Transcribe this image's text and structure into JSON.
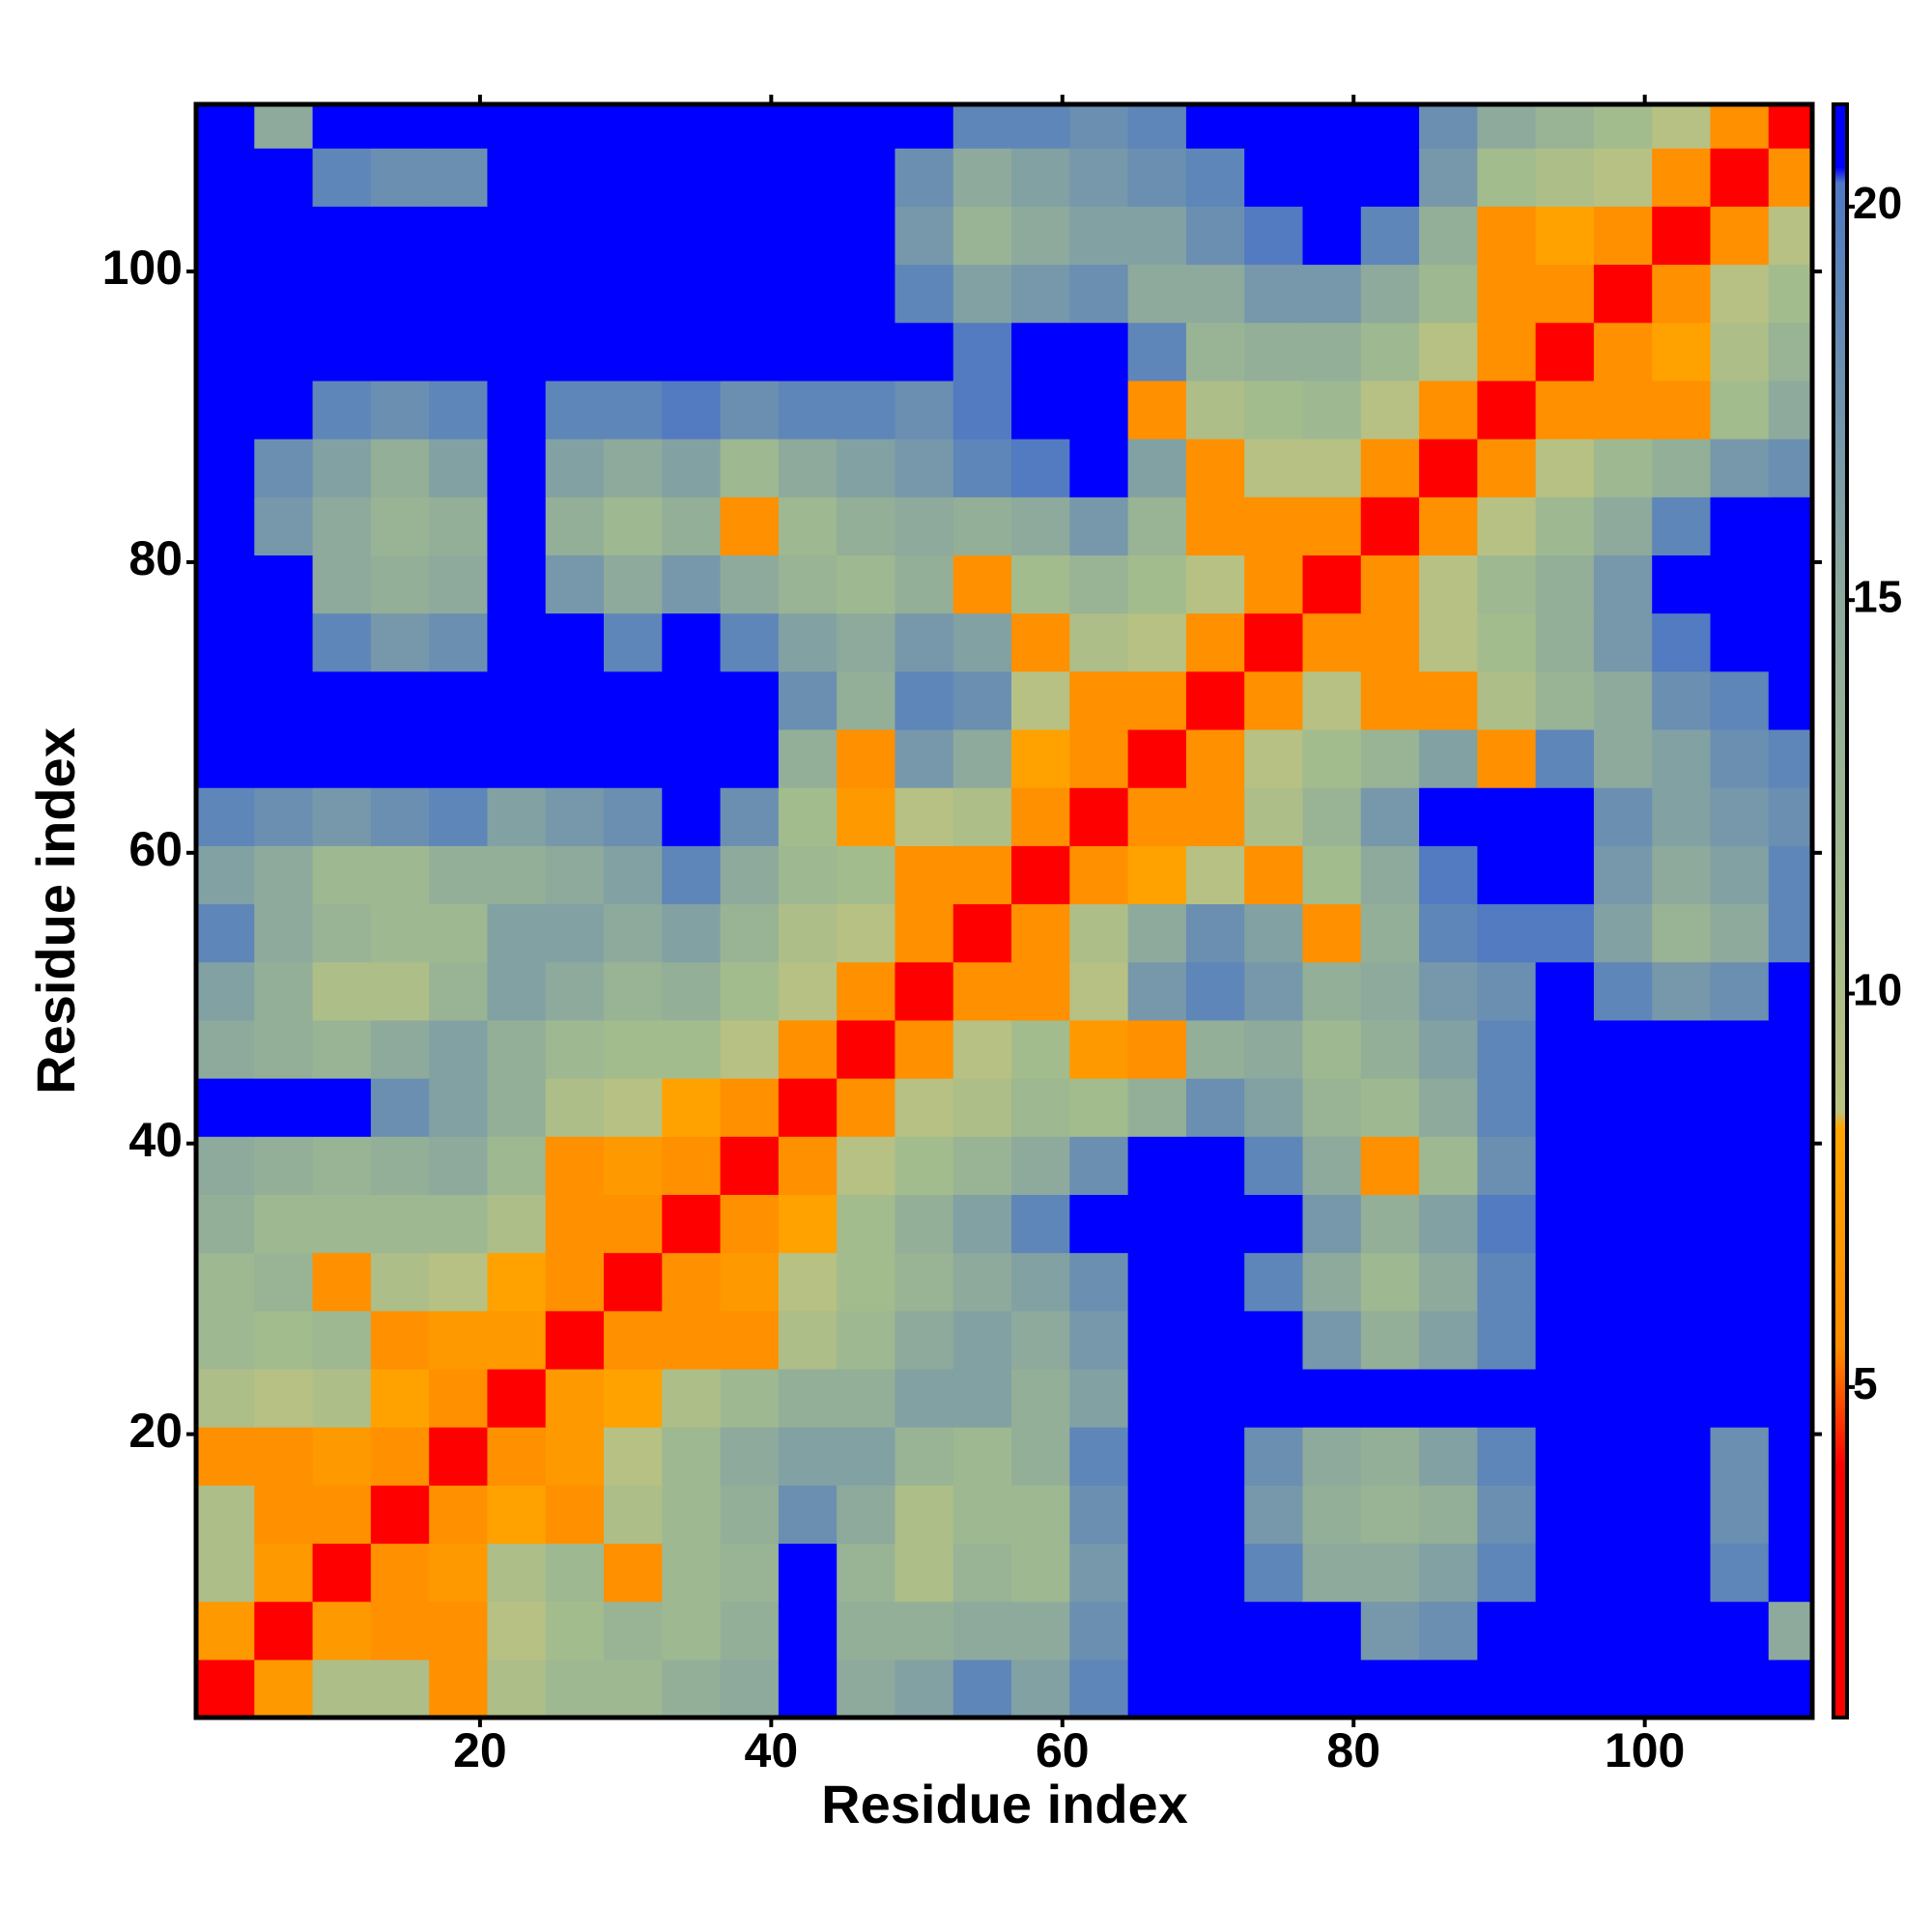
{
  "chart_data": {
    "type": "heatmap",
    "xlabel": "Residue index",
    "ylabel": "Residue index",
    "x": [
      2.5,
      6.5,
      10.5,
      14.5,
      18.5,
      22.5,
      26.5,
      30.5,
      34.5,
      38.5,
      42.5,
      46.5,
      50.5,
      54.5,
      58.5,
      62.5,
      66.5,
      70.5,
      74.5,
      78.5,
      82.5,
      86.5,
      90.5,
      94.5,
      98.5,
      102.5,
      106.5,
      110.5
    ],
    "y": [
      2.5,
      6.5,
      10.5,
      14.5,
      18.5,
      22.5,
      26.5,
      30.5,
      34.5,
      38.5,
      42.5,
      46.5,
      50.5,
      54.5,
      58.5,
      62.5,
      66.5,
      70.5,
      74.5,
      78.5,
      82.5,
      86.5,
      90.5,
      94.5,
      98.5,
      102.5,
      106.5,
      110.5
    ],
    "cell_size": 4,
    "xlim": [
      0.5,
      111.5
    ],
    "ylim": [
      0.5,
      111.5
    ],
    "xticks": [
      20,
      40,
      60,
      80,
      100
    ],
    "yticks": [
      20,
      40,
      60,
      80,
      100
    ],
    "zlim": [
      0.8,
      21.3
    ],
    "zticks": [
      5,
      10,
      15,
      20
    ],
    "colorscale": [
      [
        0.8,
        "#ff0000"
      ],
      [
        4,
        "#ff0000"
      ],
      [
        5.5,
        "#ff8c00"
      ],
      [
        8.3,
        "#ffa500"
      ],
      [
        8.5,
        "#bcc280"
      ],
      [
        11,
        "#a3bc8d"
      ],
      [
        15,
        "#8eaa9c"
      ],
      [
        19,
        "#5e86b8"
      ],
      [
        20.3,
        "#4f78c4"
      ],
      [
        20.5,
        "#0000ff"
      ],
      [
        21.3,
        "#0000ff"
      ]
    ],
    "z": [
      [
        3,
        7,
        10,
        10,
        6,
        10,
        12,
        12,
        14,
        15,
        21,
        15,
        16,
        19,
        16,
        19,
        21,
        21,
        21,
        21,
        21,
        21,
        21,
        21,
        21,
        21,
        21,
        21
      ],
      [
        7,
        3,
        7,
        6,
        6,
        9,
        11,
        13,
        12,
        14,
        21,
        14,
        14,
        15,
        15,
        18,
        21,
        21,
        21,
        21,
        17,
        18,
        21,
        21,
        21,
        21,
        21,
        15
      ],
      [
        10,
        7,
        3,
        6,
        7,
        10,
        12,
        6,
        12,
        13,
        21,
        13,
        10,
        13,
        12,
        17,
        21,
        21,
        19,
        15,
        15,
        16,
        19,
        21,
        21,
        21,
        19,
        21
      ],
      [
        10,
        6,
        6,
        3,
        6,
        8,
        6,
        10,
        12,
        14,
        18,
        15,
        10,
        12,
        12,
        18,
        21,
        21,
        17,
        14,
        13,
        14,
        18,
        21,
        21,
        21,
        18,
        21
      ],
      [
        6,
        6,
        7,
        6,
        3,
        6,
        7,
        9,
        12,
        15,
        16,
        16,
        13,
        12,
        14,
        19,
        21,
        21,
        18,
        15,
        14,
        16,
        19,
        21,
        21,
        21,
        18,
        21
      ],
      [
        10,
        9,
        10,
        8,
        6,
        3,
        7,
        8,
        10,
        12,
        14,
        14,
        16,
        16,
        14,
        16,
        21,
        21,
        21,
        21,
        21,
        21,
        21,
        21,
        21,
        21,
        21,
        21
      ],
      [
        12,
        11,
        12,
        6,
        7,
        7,
        3,
        6,
        6,
        6,
        10,
        12,
        15,
        16,
        15,
        17,
        21,
        21,
        21,
        17,
        14,
        16,
        19,
        21,
        21,
        21,
        21,
        21
      ],
      [
        12,
        13,
        6,
        10,
        9,
        8,
        6,
        3,
        6,
        7,
        9,
        11,
        13,
        15,
        16,
        18,
        21,
        21,
        19,
        15,
        12,
        15,
        19,
        21,
        21,
        21,
        21,
        21
      ],
      [
        14,
        12,
        12,
        12,
        12,
        10,
        6,
        6,
        3,
        6,
        8,
        11,
        14,
        16,
        19,
        21,
        21,
        21,
        21,
        17,
        14,
        16,
        20,
        21,
        21,
        21,
        21,
        21
      ],
      [
        15,
        14,
        13,
        14,
        15,
        12,
        6,
        7,
        6,
        3,
        6,
        9,
        11,
        13,
        15,
        18,
        21,
        21,
        19,
        15,
        6,
        12,
        18,
        21,
        21,
        21,
        21,
        21
      ],
      [
        21,
        21,
        21,
        18,
        16,
        14,
        10,
        9,
        8,
        6,
        3,
        6,
        9,
        10,
        12,
        11,
        14,
        18,
        16,
        13,
        12,
        15,
        19,
        21,
        21,
        21,
        21,
        21
      ],
      [
        15,
        14,
        13,
        15,
        16,
        14,
        12,
        11,
        11,
        9,
        6,
        3,
        6,
        9,
        11,
        7,
        6,
        14,
        15,
        12,
        14,
        16,
        19,
        21,
        21,
        21,
        21,
        21
      ],
      [
        16,
        14,
        10,
        10,
        13,
        16,
        15,
        13,
        14,
        11,
        9,
        6,
        3,
        6,
        6,
        9,
        17,
        19,
        17,
        14,
        15,
        17,
        18,
        21,
        19,
        17,
        18,
        21
      ],
      [
        19,
        15,
        13,
        12,
        12,
        16,
        16,
        15,
        16,
        13,
        10,
        9,
        6,
        3,
        6,
        10,
        15,
        18,
        16,
        6,
        14,
        19,
        20,
        20,
        16,
        13,
        15,
        19
      ],
      [
        16,
        15,
        12,
        12,
        14,
        14,
        15,
        16,
        19,
        15,
        12,
        11,
        6,
        6,
        3,
        6,
        8,
        9,
        6,
        11,
        15,
        20,
        21,
        21,
        17,
        15,
        16,
        19
      ],
      [
        19,
        18,
        17,
        18,
        19,
        16,
        17,
        18,
        21,
        18,
        11,
        7,
        9,
        10,
        6,
        3,
        6,
        6,
        10,
        13,
        17,
        21,
        21,
        21,
        18,
        16,
        17,
        18
      ],
      [
        21,
        21,
        21,
        21,
        21,
        21,
        21,
        21,
        21,
        21,
        14,
        6,
        17,
        15,
        8,
        6,
        3,
        6,
        9,
        11,
        13,
        16,
        6,
        19,
        15,
        16,
        18,
        19
      ],
      [
        21,
        21,
        21,
        21,
        21,
        21,
        21,
        21,
        21,
        21,
        18,
        14,
        19,
        18,
        9,
        6,
        6,
        3,
        6,
        9,
        6,
        6,
        10,
        13,
        15,
        18,
        19,
        21
      ],
      [
        21,
        21,
        19,
        17,
        18,
        21,
        21,
        19,
        21,
        19,
        16,
        15,
        17,
        16,
        6,
        10,
        9,
        6,
        3,
        6,
        6,
        9,
        11,
        14,
        17,
        20,
        21,
        21
      ],
      [
        21,
        21,
        15,
        14,
        15,
        21,
        17,
        15,
        17,
        15,
        13,
        12,
        14,
        6,
        11,
        13,
        11,
        9,
        6,
        3,
        6,
        9,
        12,
        14,
        17,
        21,
        21,
        21
      ],
      [
        21,
        17,
        15,
        13,
        14,
        21,
        14,
        12,
        14,
        6,
        12,
        14,
        15,
        14,
        15,
        17,
        13,
        6,
        6,
        6,
        3,
        6,
        9,
        12,
        15,
        19,
        21,
        21
      ],
      [
        21,
        18,
        16,
        14,
        16,
        21,
        16,
        15,
        16,
        12,
        15,
        16,
        17,
        19,
        20,
        21,
        16,
        6,
        9,
        9,
        6,
        3,
        6,
        9,
        12,
        14,
        17,
        18
      ],
      [
        21,
        21,
        19,
        18,
        19,
        21,
        19,
        19,
        20,
        18,
        19,
        19,
        18,
        20,
        21,
        21,
        6,
        10,
        11,
        12,
        9,
        6,
        3,
        6,
        6,
        6,
        11,
        15
      ],
      [
        21,
        21,
        21,
        21,
        21,
        21,
        21,
        21,
        21,
        21,
        21,
        21,
        21,
        20,
        21,
        21,
        19,
        13,
        14,
        14,
        12,
        9,
        6,
        3,
        6,
        8,
        10,
        13
      ],
      [
        21,
        21,
        21,
        21,
        21,
        21,
        21,
        21,
        21,
        21,
        21,
        21,
        19,
        16,
        17,
        18,
        15,
        15,
        17,
        17,
        15,
        12,
        6,
        6,
        3,
        6,
        9,
        11
      ],
      [
        21,
        21,
        21,
        21,
        21,
        21,
        21,
        21,
        21,
        21,
        21,
        21,
        17,
        13,
        15,
        16,
        16,
        18,
        20,
        21,
        19,
        14,
        6,
        8,
        6,
        3,
        6,
        9
      ],
      [
        21,
        21,
        19,
        18,
        18,
        21,
        21,
        21,
        21,
        21,
        21,
        21,
        18,
        15,
        16,
        17,
        18,
        19,
        21,
        21,
        21,
        17,
        11,
        10,
        9,
        6,
        3,
        6
      ],
      [
        21,
        15,
        21,
        21,
        21,
        21,
        21,
        21,
        21,
        21,
        21,
        21,
        21,
        19,
        19,
        18,
        19,
        21,
        21,
        21,
        21,
        18,
        15,
        13,
        11,
        9,
        6,
        3
      ]
    ]
  }
}
